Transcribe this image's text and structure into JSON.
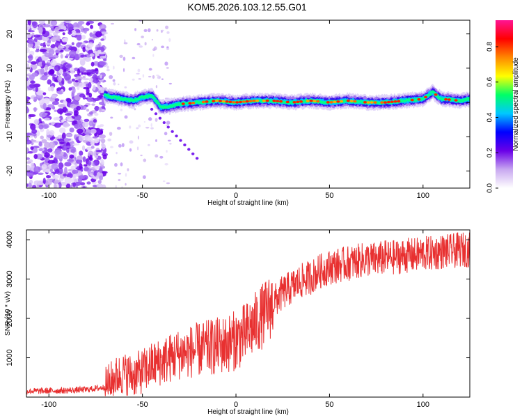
{
  "title": "KOM5.2026.103.12.55.G01",
  "chart_data": [
    {
      "type": "heatmap",
      "title": "KOM5.2026.103.12.55.G01",
      "xlabel": "Height of straight line (km)",
      "ylabel": "Frequency (Hz)",
      "xlim": [
        -112,
        125
      ],
      "ylim": [
        -25,
        24
      ],
      "xticks": [
        -100,
        -50,
        0,
        50,
        100
      ],
      "yticks": [
        20,
        10,
        0,
        -10,
        -20
      ],
      "colorbar": {
        "label": "Normalized spectral amplitude",
        "range": [
          0,
          0.95
        ],
        "ticks": [
          0.0,
          0.2,
          0.4,
          0.6,
          0.8
        ],
        "colors": [
          "#ffffff",
          "#c8a8f0",
          "#6a00e8",
          "#0000ff",
          "#00c8ff",
          "#00ff66",
          "#ffff00",
          "#ff8800",
          "#ff0000",
          "#ff1493"
        ]
      },
      "ridge": {
        "description_points_x": [
          -70,
          -65,
          -60,
          -55,
          -50,
          -45,
          -40,
          -35,
          -30,
          -20,
          -10,
          0,
          10,
          20,
          30,
          40,
          50,
          60,
          70,
          80,
          90,
          100,
          105,
          110,
          120,
          125
        ],
        "description_points_y": [
          2,
          1.5,
          1,
          0.5,
          1.5,
          2,
          -1.5,
          -1,
          -0.5,
          0,
          0.5,
          0,
          0.5,
          0.5,
          0,
          0.5,
          0,
          0.5,
          0,
          0,
          0.5,
          1,
          3,
          1,
          0.5,
          1
        ]
      }
    },
    {
      "type": "line",
      "xlabel": "Height of straight line (km)",
      "ylabel": "SNR (10 * v/v)",
      "xlim": [
        -112,
        125
      ],
      "ylim": [
        0,
        4250
      ],
      "xticks": [
        -100,
        -50,
        0,
        50,
        100
      ],
      "yticks": [
        1000,
        2000,
        3000,
        4000
      ],
      "series": [
        {
          "name": "SNR",
          "color": "#e83030",
          "x": [
            -112,
            -100,
            -90,
            -80,
            -70,
            -65,
            -60,
            -55,
            -50,
            -45,
            -40,
            -35,
            -30,
            -25,
            -20,
            -15,
            -10,
            -5,
            0,
            5,
            10,
            15,
            20,
            25,
            30,
            35,
            40,
            45,
            50,
            55,
            60,
            65,
            70,
            75,
            80,
            85,
            90,
            95,
            100,
            105,
            110,
            115,
            120,
            125
          ],
          "values": [
            150,
            160,
            170,
            190,
            250,
            500,
            600,
            550,
            650,
            800,
            900,
            1000,
            1100,
            1150,
            1200,
            1250,
            1300,
            1350,
            1450,
            1600,
            1850,
            2100,
            2400,
            2650,
            2800,
            2950,
            3050,
            3200,
            3300,
            3350,
            3400,
            3450,
            3500,
            3500,
            3550,
            3550,
            3600,
            3600,
            3650,
            3650,
            3700,
            3700,
            3750,
            3750
          ]
        }
      ]
    }
  ]
}
